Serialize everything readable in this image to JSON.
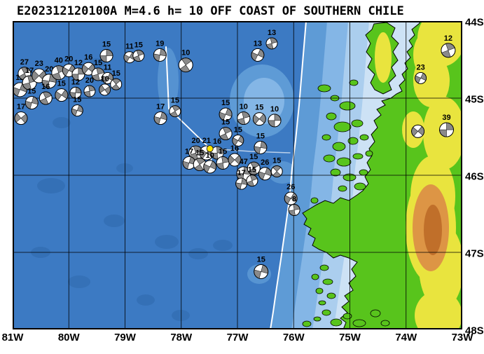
{
  "title": "E202312120100A M=4.6 h= 10 OFF COAST OF SOUTHERN CHILE",
  "map": {
    "lon_range": [
      -81,
      -73
    ],
    "lat_range": [
      -48,
      -44
    ],
    "lon_labels": [
      "81W",
      "80W",
      "79W",
      "78W",
      "77W",
      "76W",
      "75W",
      "74W",
      "73W"
    ],
    "lat_labels": [
      "44S",
      "45S",
      "46S",
      "47S",
      "48S"
    ],
    "colors": {
      "ocean": "#3c7ac3",
      "ocean_deep": "#2c65a8",
      "bathy1": "#5e9bd6",
      "bathy2": "#84b6e6",
      "bathy3": "#abceee",
      "bathy4": "#cde2f5",
      "land": "#58c41c",
      "elev1": "#e9e43e",
      "elev2": "#dd9545",
      "elev3": "#c06f2a",
      "coast": "#000000",
      "tectonic": "#ffffff",
      "grid": "#000000",
      "frame": "#000000",
      "ball_bg": "#ffffff",
      "ball_fill": "#8a8a8a",
      "ball_edge": "#000000",
      "epicenter": "#ffe400"
    }
  },
  "highlight_event": {
    "lon": -77.49,
    "lat": -45.655
  },
  "events": [
    {
      "lon": -80.87,
      "lat": -44.89,
      "depth": "12",
      "r": 10,
      "rot": 20
    },
    {
      "lon": -80.79,
      "lat": -44.68,
      "depth": "27",
      "r": 9,
      "rot": -30
    },
    {
      "lon": -80.7,
      "lat": -44.8,
      "depth": "17",
      "r": 10,
      "rot": -15
    },
    {
      "lon": -80.53,
      "lat": -44.71,
      "depth": "23",
      "r": 10,
      "rot": 45
    },
    {
      "lon": -80.35,
      "lat": -44.78,
      "depth": "20",
      "r": 10,
      "rot": 10
    },
    {
      "lon": -80.18,
      "lat": -44.67,
      "depth": "40",
      "r": 10,
      "rot": -20
    },
    {
      "lon": -80.0,
      "lat": -44.64,
      "depth": "20",
      "r": 9,
      "rot": 30
    },
    {
      "lon": -79.83,
      "lat": -44.69,
      "depth": "12",
      "r": 9,
      "rot": 0
    },
    {
      "lon": -79.65,
      "lat": -44.62,
      "depth": "16",
      "r": 9,
      "rot": 40
    },
    {
      "lon": -79.48,
      "lat": -44.69,
      "depth": "15",
      "r": 9,
      "rot": -15
    },
    {
      "lon": -79.31,
      "lat": -44.74,
      "depth": "11",
      "r": 8,
      "rot": 25
    },
    {
      "lon": -79.16,
      "lat": -44.82,
      "depth": "15",
      "r": 8,
      "rot": -40
    },
    {
      "lon": -79.36,
      "lat": -44.89,
      "depth": "10",
      "r": 8,
      "rot": 55
    },
    {
      "lon": -80.66,
      "lat": -45.06,
      "depth": "15",
      "r": 9,
      "rot": 15
    },
    {
      "lon": -80.41,
      "lat": -45.0,
      "depth": "16",
      "r": 9,
      "rot": -25
    },
    {
      "lon": -80.13,
      "lat": -44.96,
      "depth": "15",
      "r": 9,
      "rot": 35
    },
    {
      "lon": -79.88,
      "lat": -44.93,
      "depth": "12",
      "r": 8,
      "rot": 5
    },
    {
      "lon": -79.63,
      "lat": -44.91,
      "depth": "20",
      "r": 8,
      "rot": -10
    },
    {
      "lon": -80.85,
      "lat": -45.26,
      "depth": "17",
      "r": 9,
      "rot": 50
    },
    {
      "lon": -79.85,
      "lat": -45.16,
      "depth": "15",
      "r": 8,
      "rot": 20
    },
    {
      "lon": -79.33,
      "lat": -44.45,
      "depth": "15",
      "r": 9,
      "rot": 0
    },
    {
      "lon": -78.92,
      "lat": -44.47,
      "depth": "11",
      "r": 8,
      "rot": 30
    },
    {
      "lon": -78.76,
      "lat": -44.45,
      "depth": "15",
      "r": 8,
      "rot": -20
    },
    {
      "lon": -78.38,
      "lat": -44.44,
      "depth": "19",
      "r": 9,
      "rot": 10
    },
    {
      "lon": -77.92,
      "lat": -44.57,
      "depth": "10",
      "r": 10,
      "rot": -35
    },
    {
      "lon": -76.64,
      "lat": -44.44,
      "depth": "13",
      "r": 9,
      "rot": 25
    },
    {
      "lon": -76.39,
      "lat": -44.29,
      "depth": "13",
      "r": 8,
      "rot": -15
    },
    {
      "lon": -78.37,
      "lat": -45.26,
      "depth": "17",
      "r": 9,
      "rot": 15
    },
    {
      "lon": -78.11,
      "lat": -45.17,
      "depth": "15",
      "r": 8,
      "rot": -30
    },
    {
      "lon": -77.21,
      "lat": -45.21,
      "depth": "15",
      "r": 9,
      "rot": 20
    },
    {
      "lon": -76.89,
      "lat": -45.26,
      "depth": "10",
      "r": 9,
      "rot": -15
    },
    {
      "lon": -76.61,
      "lat": -45.27,
      "depth": "15",
      "r": 9,
      "rot": 40
    },
    {
      "lon": -76.34,
      "lat": -45.29,
      "depth": "10",
      "r": 9,
      "rot": 0
    },
    {
      "lon": -77.21,
      "lat": -45.46,
      "depth": "15",
      "r": 9,
      "rot": -25
    },
    {
      "lon": -76.99,
      "lat": -45.55,
      "depth": "15",
      "r": 8,
      "rot": 30
    },
    {
      "lon": -76.59,
      "lat": -45.64,
      "depth": "15",
      "r": 9,
      "rot": 10
    },
    {
      "lon": -77.74,
      "lat": -45.71,
      "depth": "20",
      "r": 10,
      "rot": -20
    },
    {
      "lon": -77.55,
      "lat": -45.71,
      "depth": "21",
      "r": 10,
      "rot": 35
    },
    {
      "lon": -77.36,
      "lat": -45.71,
      "depth": "16",
      "r": 9,
      "rot": -5
    },
    {
      "lon": -77.86,
      "lat": -45.84,
      "depth": "17",
      "r": 9,
      "rot": 15
    },
    {
      "lon": -77.67,
      "lat": -45.86,
      "depth": "15",
      "r": 9,
      "rot": -35
    },
    {
      "lon": -77.49,
      "lat": -45.89,
      "depth": "10",
      "r": 9,
      "rot": 25
    },
    {
      "lon": -77.26,
      "lat": -45.84,
      "depth": "15",
      "r": 9,
      "rot": -10
    },
    {
      "lon": -77.05,
      "lat": -45.8,
      "depth": "16",
      "r": 9,
      "rot": 45
    },
    {
      "lon": -76.89,
      "lat": -45.98,
      "depth": "47",
      "r": 10,
      "rot": 5
    },
    {
      "lon": -76.71,
      "lat": -45.91,
      "depth": "15",
      "r": 9,
      "rot": -30
    },
    {
      "lon": -76.51,
      "lat": -45.98,
      "depth": "26",
      "r": 9,
      "rot": 20
    },
    {
      "lon": -76.3,
      "lat": -45.95,
      "depth": "15",
      "r": 8,
      "rot": -45
    },
    {
      "lon": -76.93,
      "lat": -46.11,
      "depth": "17",
      "r": 8,
      "rot": 10
    },
    {
      "lon": -76.74,
      "lat": -46.07,
      "depth": "15",
      "r": 8,
      "rot": -20
    },
    {
      "lon": -76.05,
      "lat": -46.3,
      "depth": "26",
      "r": 9,
      "rot": 30
    },
    {
      "lon": -75.99,
      "lat": -46.45,
      "depth": "8",
      "r": 8,
      "rot": -10
    },
    {
      "lon": -76.58,
      "lat": -47.25,
      "depth": "15",
      "r": 10,
      "rot": 15
    },
    {
      "lon": -73.25,
      "lat": -44.38,
      "depth": "12",
      "r": 10,
      "rot": -20
    },
    {
      "lon": -73.74,
      "lat": -44.74,
      "depth": "23",
      "r": 8,
      "rot": 25
    },
    {
      "lon": -73.28,
      "lat": -45.41,
      "depth": "39",
      "r": 10,
      "rot": 0
    },
    {
      "lon": -73.79,
      "lat": -45.43,
      "depth": "",
      "r": 9,
      "rot": 40
    }
  ]
}
